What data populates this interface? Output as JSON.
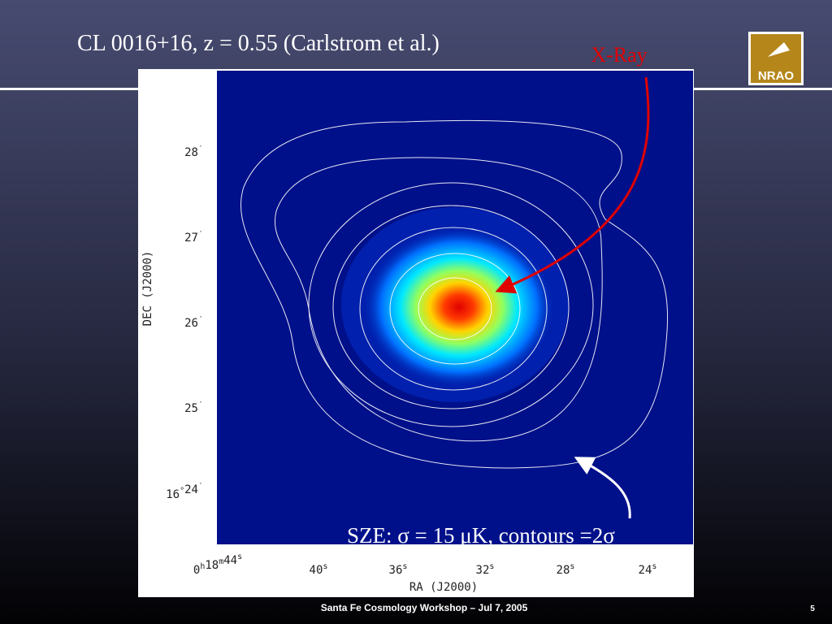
{
  "title": "CL 0016+16, z = 0.55 (Carlstrom et al.)",
  "logo_text": "NRAO",
  "xray_label": "X-Ray",
  "sze_label": "SZE: σ = 15 μK, contours =2σ",
  "plot": {
    "y_axis_title": "DEC (J2000)",
    "x_axis_title": "RA (J2000)",
    "dec_ticks": [
      [
        [
          "28",
          "′"
        ]
      ],
      [
        [
          "27",
          "′"
        ]
      ],
      [
        [
          "26",
          "′"
        ]
      ],
      [
        [
          "25",
          "′"
        ]
      ],
      [
        [
          "16",
          "°"
        ],
        [
          "24",
          "′"
        ]
      ]
    ],
    "ra_ticks": [
      [
        [
          "0",
          "h"
        ],
        [
          "18",
          "m"
        ],
        [
          "44",
          "s"
        ]
      ],
      [
        [
          "40",
          "s"
        ]
      ],
      [
        [
          "36",
          "s"
        ]
      ],
      [
        [
          "32",
          "s"
        ]
      ],
      [
        [
          "28",
          "s"
        ]
      ],
      [
        [
          "24",
          "s"
        ]
      ]
    ]
  },
  "footer": {
    "text": "Santa Fe Cosmology Workshop  – Jul 7, 2005",
    "page": "5"
  }
}
